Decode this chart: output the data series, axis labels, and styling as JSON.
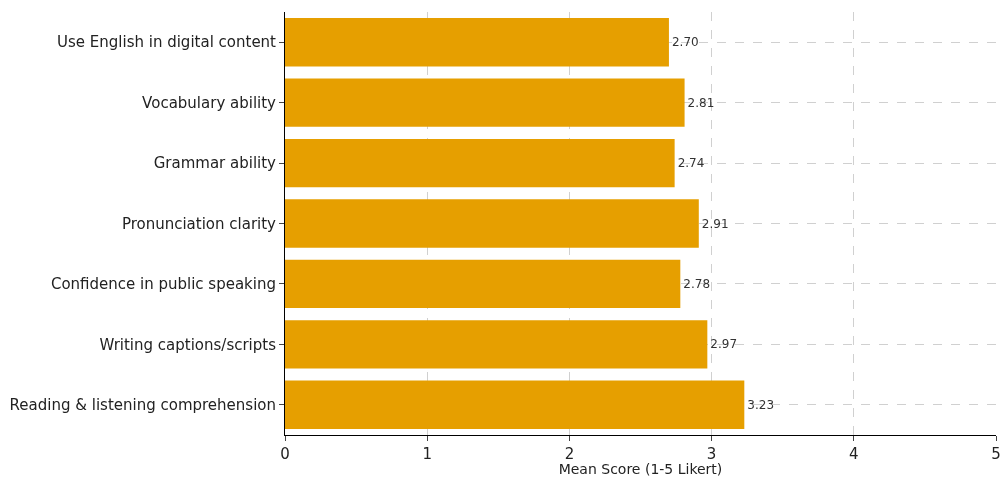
{
  "chart_data": {
    "type": "bar",
    "orientation": "horizontal",
    "xlabel": "Mean Score (1-5 Likert)",
    "categories": [
      "Use English in digital content",
      "Vocabulary ability",
      "Grammar ability",
      "Pronunciation clarity",
      "Confidence in public speaking",
      "Writing captions/scripts",
      "Reading & listening comprehension"
    ],
    "values": [
      2.7,
      2.81,
      2.74,
      2.91,
      2.78,
      2.97,
      3.23
    ],
    "value_labels": [
      "2.70",
      "2.81",
      "2.74",
      "2.91",
      "2.78",
      "2.97",
      "3.23"
    ],
    "color": "#e69f00",
    "xlim": [
      0,
      5
    ],
    "xticks": [
      0,
      1,
      2,
      3,
      4,
      5
    ],
    "grid": true,
    "legend": false
  }
}
